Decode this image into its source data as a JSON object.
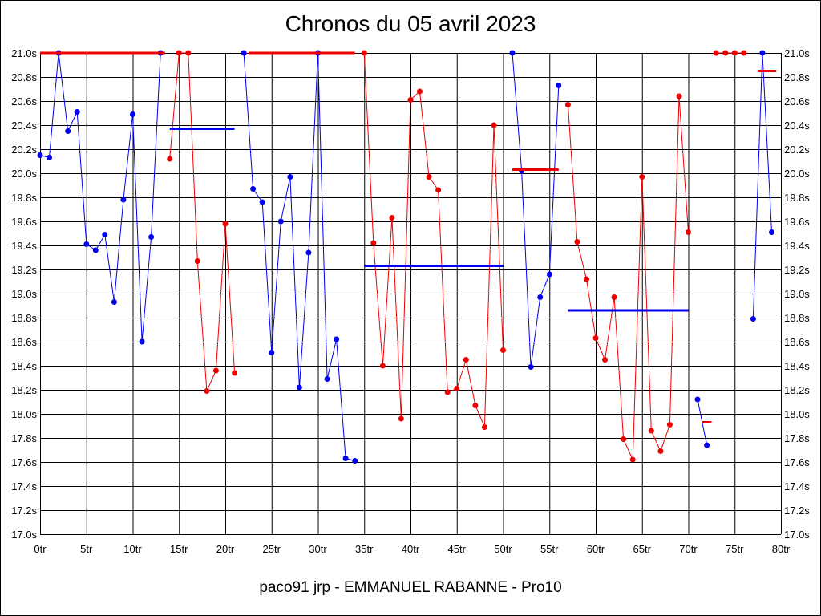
{
  "title": "Chronos du 05 avril 2023",
  "footer": "paco91 jrp - EMMANUEL RABANNE - Pro10",
  "colors": {
    "blue": "#0000ee",
    "red": "#ee0000",
    "grid": "#000000"
  },
  "chart_data": {
    "type": "line",
    "title": "Chronos du 05 avril 2023",
    "xlim": [
      0,
      80
    ],
    "ylim": [
      17.0,
      21.0
    ],
    "xticks": [
      0,
      5,
      10,
      15,
      20,
      25,
      30,
      35,
      40,
      45,
      50,
      55,
      60,
      65,
      70,
      75,
      80
    ],
    "xtick_labels": [
      "0tr",
      "5tr",
      "10tr",
      "15tr",
      "20tr",
      "25tr",
      "30tr",
      "35tr",
      "40tr",
      "45tr",
      "50tr",
      "55tr",
      "60tr",
      "65tr",
      "70tr",
      "75tr",
      "80tr"
    ],
    "yticks": [
      17.0,
      17.2,
      17.4,
      17.6,
      17.8,
      18.0,
      18.2,
      18.4,
      18.6,
      18.8,
      19.0,
      19.2,
      19.4,
      19.6,
      19.8,
      20.0,
      20.2,
      20.4,
      20.6,
      20.8,
      21.0
    ],
    "ytick_labels": [
      "17.0s",
      "17.2s",
      "17.4s",
      "17.6s",
      "17.8s",
      "18.0s",
      "18.2s",
      "18.4s",
      "18.6s",
      "18.8s",
      "19.0s",
      "19.2s",
      "19.4s",
      "19.6s",
      "19.8s",
      "20.0s",
      "20.2s",
      "20.4s",
      "20.6s",
      "20.8s",
      "21.0s"
    ],
    "grid": true,
    "series": [
      {
        "color": "#0000ee",
        "x": [
          0,
          1,
          2,
          3,
          4,
          5,
          6,
          7,
          8,
          9,
          10,
          11,
          12,
          13
        ],
        "y": [
          20.15,
          20.13,
          21.0,
          20.35,
          20.51,
          19.41,
          19.36,
          19.49,
          18.93,
          19.78,
          20.49,
          18.6,
          19.47,
          21.0
        ]
      },
      {
        "color": "#ee0000",
        "x": [
          14,
          15,
          16,
          17,
          18,
          19,
          20,
          21
        ],
        "y": [
          20.12,
          21.0,
          21.0,
          19.27,
          18.19,
          18.36,
          19.58,
          18.34
        ]
      },
      {
        "color": "#0000ee",
        "x": [
          22,
          23,
          24,
          25,
          26,
          27,
          28,
          29,
          30,
          31,
          32,
          33,
          34
        ],
        "y": [
          21.0,
          19.87,
          19.76,
          18.51,
          19.6,
          19.97,
          18.22,
          19.34,
          21.0,
          18.29,
          18.62,
          17.63,
          17.61
        ]
      },
      {
        "color": "#ee0000",
        "x": [
          35,
          36,
          37,
          38,
          39,
          40,
          41,
          42,
          43,
          44,
          45,
          46,
          47,
          48,
          49,
          50
        ],
        "y": [
          21.0,
          19.42,
          18.4,
          19.63,
          17.96,
          20.61,
          20.68,
          19.97,
          19.86,
          18.18,
          18.21,
          18.45,
          18.07,
          17.89,
          20.4,
          18.53
        ]
      },
      {
        "color": "#0000ee",
        "x": [
          51,
          52,
          53,
          54,
          55,
          56
        ],
        "y": [
          21.0,
          20.02,
          18.39,
          18.97,
          19.16,
          20.73
        ]
      },
      {
        "color": "#ee0000",
        "x": [
          57,
          58,
          59,
          60,
          61,
          62,
          63,
          64,
          65,
          66,
          67,
          68,
          69,
          70
        ],
        "y": [
          20.57,
          19.43,
          19.12,
          18.63,
          18.45,
          18.97,
          17.79,
          17.62,
          19.97,
          17.86,
          17.69,
          17.91,
          20.64,
          19.51
        ]
      },
      {
        "color": "#0000ee",
        "x": [
          71,
          72
        ],
        "y": [
          18.12,
          17.74
        ]
      },
      {
        "color": "#ee0000",
        "x": [
          73,
          74,
          75,
          76
        ],
        "y": [
          21.0,
          21.0,
          21.0,
          21.0
        ]
      },
      {
        "color": "#0000ee",
        "x": [
          77,
          78,
          79
        ],
        "y": [
          18.79,
          21.0,
          19.51
        ]
      }
    ],
    "averages": [
      {
        "color": "#ee0000",
        "x1": 0,
        "x2": 13.5,
        "y": 21.0
      },
      {
        "color": "#0000ee",
        "x1": 14,
        "x2": 21,
        "y": 20.37
      },
      {
        "color": "#ee0000",
        "x1": 22.5,
        "x2": 34,
        "y": 21.0
      },
      {
        "color": "#0000ee",
        "x1": 35,
        "x2": 50,
        "y": 19.23
      },
      {
        "color": "#ee0000",
        "x1": 51,
        "x2": 56,
        "y": 20.03
      },
      {
        "color": "#0000ee",
        "x1": 57,
        "x2": 70,
        "y": 18.86
      },
      {
        "color": "#ee0000",
        "x1": 71.5,
        "x2": 72.5,
        "y": 17.93
      },
      {
        "color": "#ee0000",
        "x1": 77.5,
        "x2": 79.5,
        "y": 20.85
      }
    ]
  }
}
